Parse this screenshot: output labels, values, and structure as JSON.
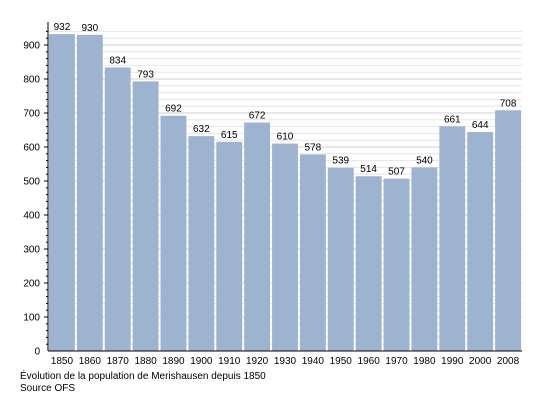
{
  "chart_data": {
    "type": "bar",
    "categories": [
      "1850",
      "1860",
      "1870",
      "1880",
      "1890",
      "1900",
      "1910",
      "1920",
      "1930",
      "1940",
      "1950",
      "1960",
      "1970",
      "1980",
      "1990",
      "2000",
      "2008"
    ],
    "values": [
      932,
      930,
      834,
      793,
      692,
      632,
      615,
      672,
      610,
      578,
      539,
      514,
      507,
      540,
      661,
      644,
      708
    ],
    "title": "",
    "xlabel": "",
    "ylabel": "",
    "ylim": [
      0,
      950
    ],
    "yticks": [
      0,
      100,
      200,
      300,
      400,
      500,
      600,
      700,
      800,
      900
    ],
    "grid": true,
    "bar_color": "#9db3cf",
    "grid_color": "#d9d9d9"
  },
  "captions": {
    "line1": "Évolution de la population de Merishausen depuis 1850",
    "line2": "Source OFS"
  }
}
